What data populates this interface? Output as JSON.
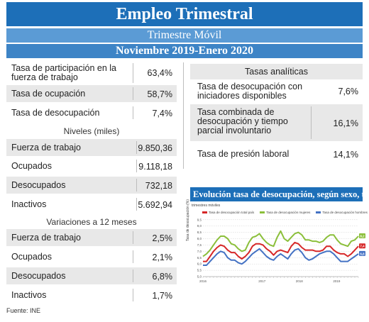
{
  "header": {
    "title": "Empleo Trimestral",
    "subtitle": "Trimestre Móvil",
    "period": "Noviembre 2019-Enero 2020"
  },
  "tasas": [
    {
      "label": "Tasa de participación en la fuerza de trabajo",
      "value": "63,4%"
    },
    {
      "label": "Tasa de ocupación",
      "value": "58,7%"
    },
    {
      "label": "Tasa de desocupación",
      "value": "7,4%"
    }
  ],
  "niveles": {
    "title": "Niveles (miles)",
    "rows": [
      {
        "label": "Fuerza de trabajo",
        "value": "9.850,36"
      },
      {
        "label": "Ocupados",
        "value": "9.118,18"
      },
      {
        "label": "Desocupados",
        "value": "732,18"
      },
      {
        "label": "Inactivos",
        "value": "5.692,94"
      }
    ]
  },
  "variaciones": {
    "title": "Variaciones a 12 meses",
    "rows": [
      {
        "label": "Fuerza de trabajo",
        "value": "2,5%"
      },
      {
        "label": "Ocupados",
        "value": "2,1%"
      },
      {
        "label": "Desocupados",
        "value": "6,8%"
      },
      {
        "label": "Inactivos",
        "value": "1,7%"
      }
    ]
  },
  "analiticas": {
    "title": "Tasas analíticas",
    "rows": [
      {
        "label": "Tasa de desocupación con iniciadores disponibles",
        "value": "7,6%"
      },
      {
        "label": "Tasa combinada de desocupación y tiempo parcial involuntario",
        "value": "16,1%"
      },
      {
        "label": "Tasa de presión laboral",
        "value": "14,1%"
      }
    ]
  },
  "chart_data": {
    "type": "line",
    "title": "Evolución tasa de desocupación, según sexo, total país",
    "subtitle": "trimestres móviles",
    "ylabel": "Tasa de desocupación (%)",
    "ylim": [
      5.0,
      9.6
    ],
    "yticks": [
      "5,0",
      "5,5",
      "6,0",
      "6,5",
      "7,0",
      "7,5",
      "8,0",
      "8,5",
      "9,0",
      "9,5"
    ],
    "years": [
      "2016",
      "2017",
      "2018",
      "2019"
    ],
    "end_labels": [
      "8,2",
      "7,4",
      "6,8"
    ],
    "grid": true,
    "series": [
      {
        "name": "Tasa de desocupación total país",
        "color": "#d62728",
        "values": [
          6.2,
          6.2,
          6.6,
          7.0,
          7.3,
          7.5,
          7.4,
          7.1,
          6.9,
          6.9,
          6.6,
          6.4,
          6.6,
          6.9,
          7.4,
          7.6,
          7.6,
          7.5,
          7.2,
          7.0,
          6.7,
          7.0,
          7.1,
          7.0,
          6.9,
          7.4,
          7.7,
          7.6,
          7.3,
          7.1,
          7.1,
          7.1,
          7.0,
          7.0,
          7.1,
          7.4,
          7.4,
          7.1,
          6.9,
          6.8,
          6.8,
          6.6,
          6.8,
          7.1,
          7.4
        ]
      },
      {
        "name": "Tasa de desocupación mujeres",
        "color": "#8bbf3a",
        "values": [
          6.6,
          6.8,
          7.1,
          7.5,
          7.9,
          8.2,
          8.2,
          8.0,
          7.6,
          7.5,
          7.2,
          7.0,
          7.1,
          7.7,
          8.1,
          8.2,
          8.4,
          8.0,
          7.7,
          7.5,
          7.4,
          8.1,
          8.6,
          8.0,
          7.8,
          8.1,
          8.4,
          8.5,
          8.3,
          7.9,
          7.9,
          7.8,
          7.8,
          7.7,
          7.8,
          8.1,
          8.3,
          8.3,
          7.9,
          7.6,
          7.5,
          7.4,
          7.8,
          7.9,
          8.2
        ]
      },
      {
        "name": "Tasa de desocupación hombres",
        "color": "#4472c4",
        "values": [
          5.9,
          5.9,
          6.2,
          6.5,
          6.8,
          7.0,
          6.9,
          6.5,
          6.3,
          6.3,
          6.1,
          6.0,
          6.2,
          6.5,
          6.8,
          7.0,
          7.2,
          6.9,
          6.6,
          6.4,
          6.3,
          6.6,
          6.8,
          6.6,
          6.4,
          6.8,
          7.1,
          7.2,
          6.9,
          6.5,
          6.3,
          6.4,
          6.6,
          6.8,
          6.9,
          7.0,
          7.0,
          6.8,
          6.5,
          6.2,
          6.2,
          6.2,
          6.4,
          6.6,
          6.8
        ]
      }
    ]
  },
  "source": "Fuente: INE"
}
